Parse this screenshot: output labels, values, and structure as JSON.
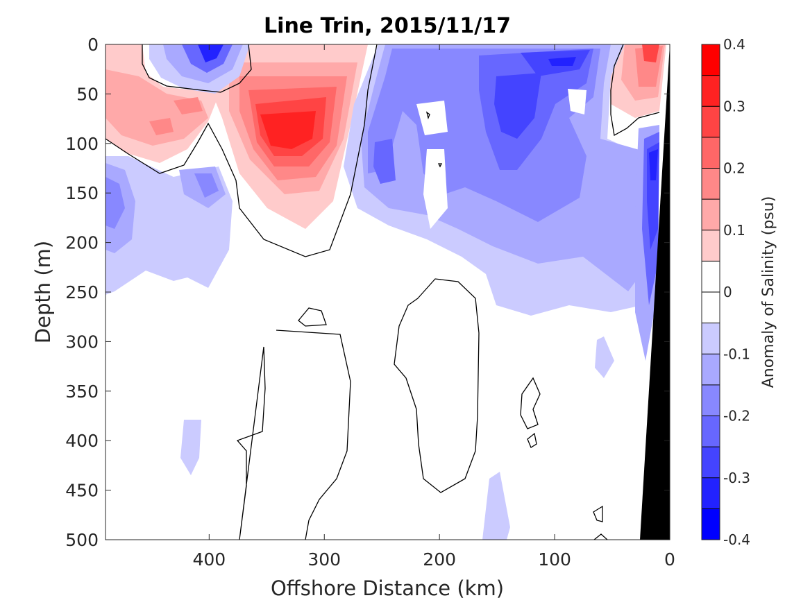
{
  "chart_data": {
    "type": "heatmap",
    "title": "Line Trin, 2015/11/17",
    "xlabel": "Offshore Distance (km)",
    "ylabel": "Depth (m)",
    "xlim": [
      490,
      0
    ],
    "ylim": [
      500,
      0
    ],
    "x_reversed": true,
    "y_reversed": true,
    "xticks": [
      400,
      300,
      200,
      100,
      0
    ],
    "xtick_labels": [
      "400",
      "300",
      "200",
      "100",
      "0"
    ],
    "yticks": [
      0,
      50,
      100,
      150,
      200,
      250,
      300,
      350,
      400,
      450,
      500
    ],
    "ytick_labels": [
      "0",
      "50",
      "100",
      "150",
      "200",
      "250",
      "300",
      "350",
      "400",
      "450",
      "500"
    ],
    "colorbar": {
      "label": "Anomaly of Salinity (psu)",
      "range": [
        -0.4,
        0.4
      ],
      "levels": 16,
      "ticks": [
        0.4,
        0.3,
        0.2,
        0.1,
        0,
        -0.1,
        -0.2,
        -0.3,
        -0.4
      ],
      "tick_labels": [
        "0.4",
        "0.3",
        "0.2",
        "0.1",
        "0",
        "-0.1",
        "-0.2",
        "-0.3",
        "-0.4"
      ],
      "colors": [
        "#0000ff",
        "#2222ff",
        "#4444ff",
        "#6767ff",
        "#8888ff",
        "#a9a9ff",
        "#cbcbff",
        "#ffffff",
        "#ffffff",
        "#ffcbcb",
        "#ffa9a9",
        "#ff8888",
        "#ff6767",
        "#ff4444",
        "#ff2222",
        "#ff0000"
      ]
    },
    "zero_contour": true,
    "bathymetry_color": "#000000",
    "anomaly_features": [
      {
        "sign": "positive",
        "x_km": 320,
        "depth_m": 95,
        "peak": 0.34
      },
      {
        "sign": "positive",
        "x_km": 440,
        "depth_m": 70,
        "peak": 0.15
      },
      {
        "sign": "positive",
        "x_km": 15,
        "depth_m": 15,
        "peak": 0.35
      },
      {
        "sign": "negative",
        "x_km": 400,
        "depth_m": 10,
        "peak": -0.32
      },
      {
        "sign": "negative",
        "x_km": 140,
        "depth_m": 70,
        "peak": -0.27
      },
      {
        "sign": "negative",
        "x_km": 95,
        "depth_m": 20,
        "peak": -0.28
      },
      {
        "sign": "negative",
        "x_km": 235,
        "depth_m": 125,
        "peak": -0.2
      },
      {
        "sign": "negative",
        "x_km": 18,
        "depth_m": 130,
        "peak": -0.28
      },
      {
        "sign": "negative",
        "x_km": 480,
        "depth_m": 160,
        "peak": -0.15
      }
    ]
  }
}
